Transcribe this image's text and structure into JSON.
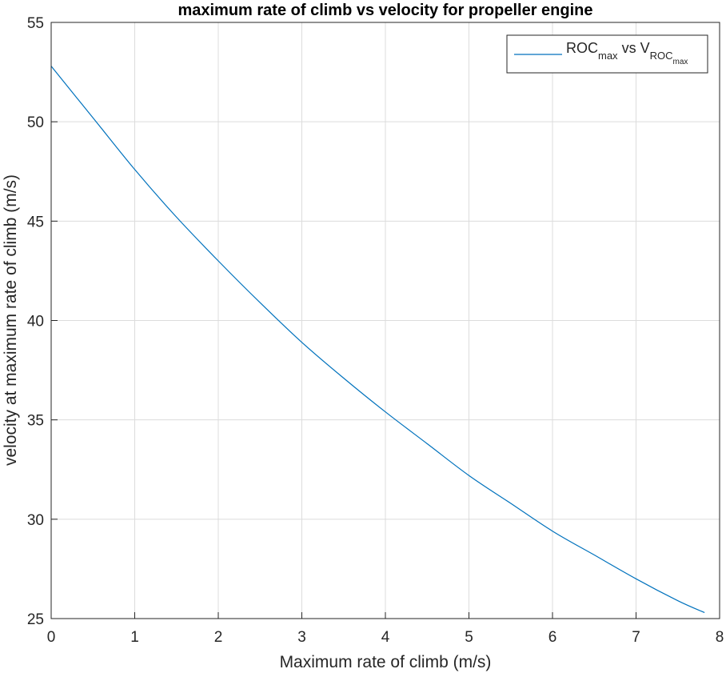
{
  "chart_data": {
    "type": "line",
    "title": "maximum rate of climb vs velocity for propeller engine",
    "xlabel": "Maximum rate of climb (m/s)",
    "ylabel": "velocity at maximum rate of climb (m/s)",
    "xlim": [
      0,
      8
    ],
    "ylim": [
      25,
      55
    ],
    "xticks": [
      "0",
      "1",
      "2",
      "3",
      "4",
      "5",
      "6",
      "7",
      "8"
    ],
    "yticks": [
      "25",
      "30",
      "35",
      "40",
      "45",
      "50",
      "55"
    ],
    "grid": true,
    "legend_position": "top-right",
    "legend": {
      "main": "ROC",
      "main_sub": "max",
      "vs": " vs ",
      "v": "V",
      "v_sub": "ROC",
      "v_subsub": "max"
    },
    "series": [
      {
        "color": "#0072BD",
        "x": [
          0,
          0.5,
          1,
          1.5,
          2,
          2.5,
          3,
          3.5,
          4,
          4.5,
          5,
          5.5,
          6,
          6.5,
          7,
          7.5,
          7.82
        ],
        "y": [
          52.8,
          50.2,
          47.6,
          45.2,
          43.0,
          40.9,
          38.9,
          37.1,
          35.4,
          33.8,
          32.2,
          30.8,
          29.4,
          28.2,
          27.0,
          25.9,
          25.3
        ]
      }
    ]
  }
}
